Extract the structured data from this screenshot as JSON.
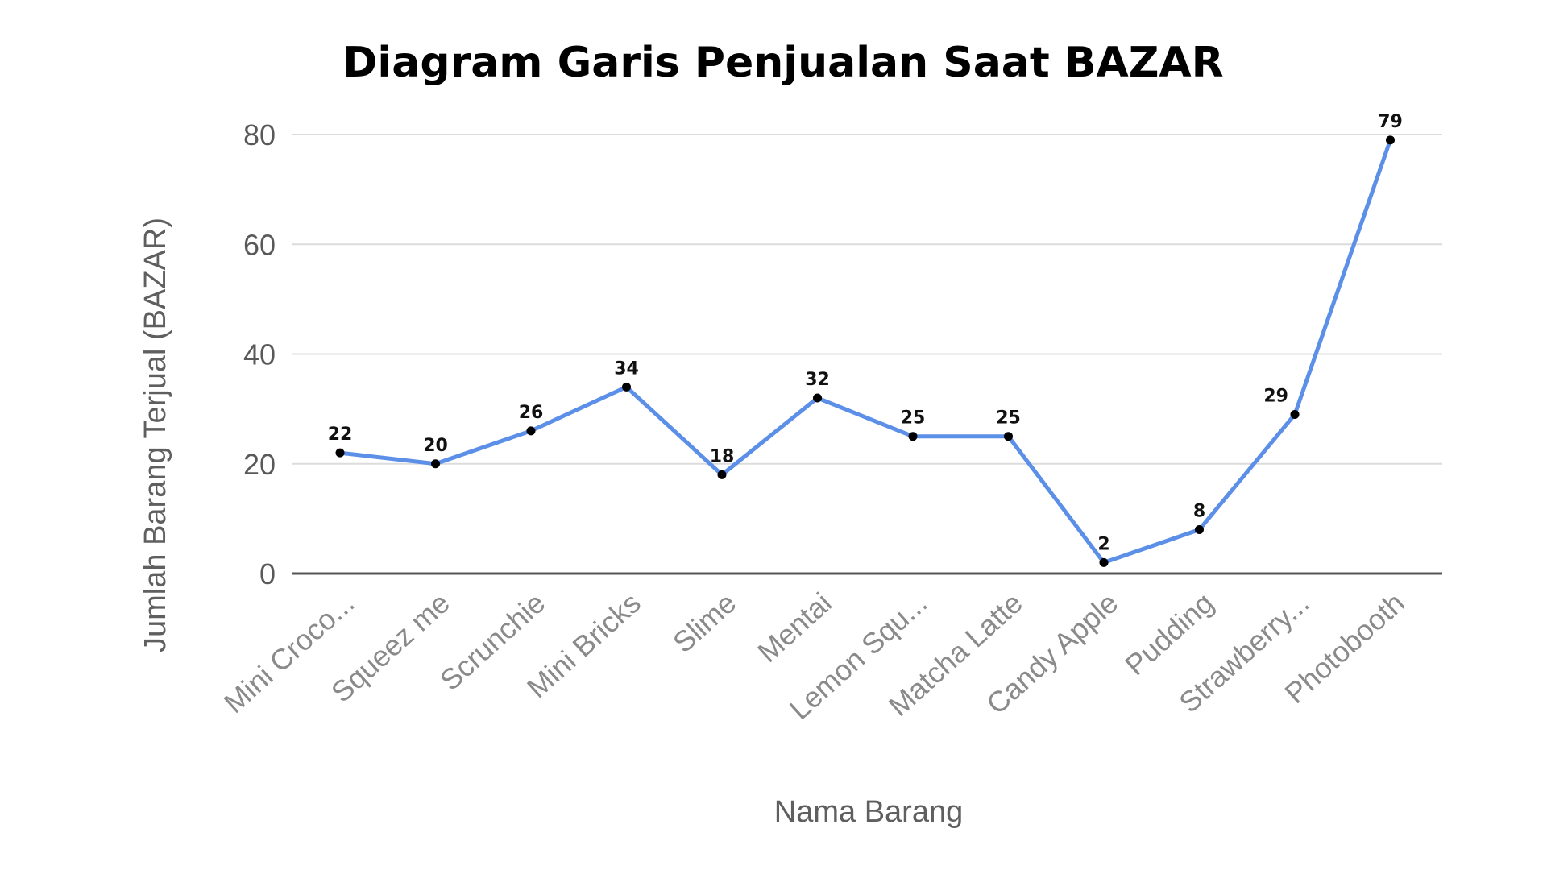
{
  "chart_data": {
    "type": "line",
    "title": "Diagram Garis Penjualan Saat BAZAR",
    "xlabel": "Nama Barang",
    "ylabel": "Jumlah Barang Terjual (BAZAR)",
    "categories": [
      "Mini Croco...",
      "Squeez me",
      "Scrunchie",
      "Mini Bricks",
      "Slime",
      "Mentai",
      "Lemon Squ...",
      "Matcha Latte",
      "Candy Apple",
      "Pudding",
      "Strawberry...",
      "Photobooth"
    ],
    "series": [
      {
        "values": [
          22,
          20,
          26,
          34,
          18,
          32,
          25,
          25,
          2,
          8,
          29,
          79
        ],
        "labels": [
          "22",
          "20",
          "26",
          "34",
          "18",
          "32",
          "25",
          "25",
          "2",
          "8",
          "29",
          "79"
        ]
      }
    ],
    "ylim": [
      0,
      80
    ],
    "yticks": [
      "0",
      "20",
      "40",
      "60",
      "80"
    ],
    "grid": true,
    "line_color": "#5b8fe8",
    "marker_color": "#000000"
  }
}
